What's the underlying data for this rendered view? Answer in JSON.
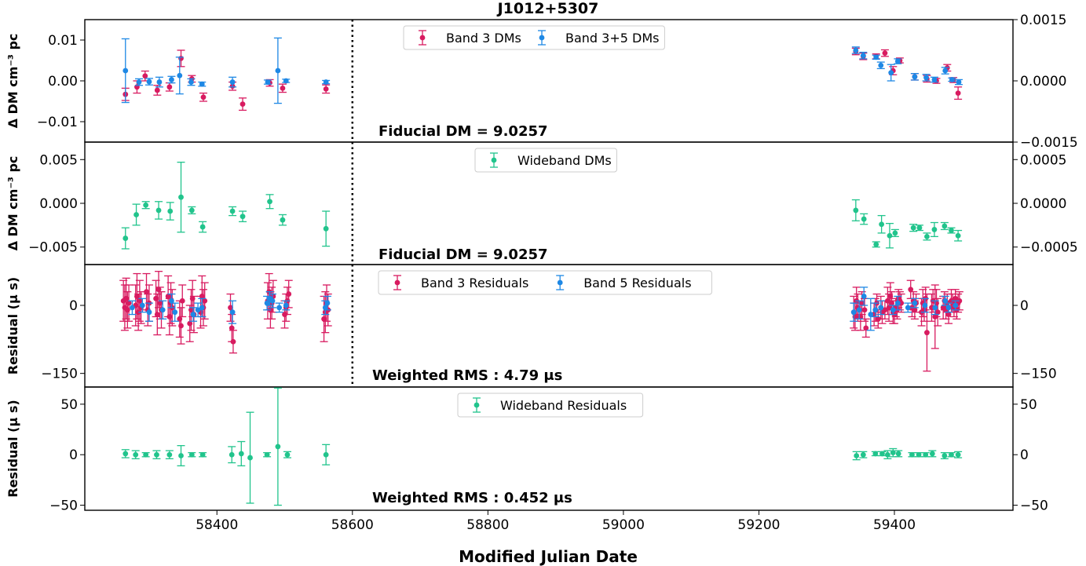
{
  "figure": {
    "title": "J1012+5307",
    "xlabel": "Modified Julian Date",
    "x_ticks": [
      "58400",
      "58600",
      "58800",
      "59000",
      "59200",
      "59400"
    ],
    "x_tick_values": [
      58400,
      58600,
      58800,
      59000,
      59200,
      59400
    ],
    "xlim": [
      58205,
      59575
    ]
  },
  "colors": {
    "band3": "#d81b60",
    "band5": "#1e88e5",
    "wideband": "#21c48c"
  },
  "chart_data": [
    {
      "type": "scatter",
      "panel": "dm-narrowband",
      "ylabel": "Δ DM  cm⁻³ pc",
      "ylim": [
        -0.015,
        0.015
      ],
      "yticks": [
        "0.01",
        "0.00",
        "−0.01"
      ],
      "ytick_values": [
        0.01,
        0.0,
        -0.01
      ],
      "right_yticks": [
        "0.0015",
        "0.0000",
        "−0.0015"
      ],
      "right_ytick_values": [
        0.0015,
        0.0,
        -0.0015
      ],
      "right_scale": 0.1,
      "annotation": "Fiducial DM = 9.0257",
      "vline_x": 58600,
      "legend": [
        "Band 3 DMs",
        "Band 3+5 DMs"
      ],
      "series": [
        {
          "name": "Band 3 DMs",
          "color_key": "band3",
          "x": [
            58265,
            58282,
            58294,
            58312,
            58330,
            58347,
            58363,
            58380,
            58423,
            58438,
            58478,
            58497,
            58561,
            59343,
            59354,
            59373,
            59386,
            59398,
            59408,
            59430,
            59448,
            59462,
            59478,
            59487,
            59494
          ],
          "y": [
            -0.0033,
            -0.0015,
            0.0012,
            -0.0023,
            -0.0015,
            0.0055,
            0.0005,
            -0.004,
            -0.0013,
            -0.0057,
            -0.0005,
            -0.0018,
            -0.002,
            0.0072,
            0.006,
            0.006,
            0.0068,
            0.0025,
            0.005,
            0.001,
            0.0005,
            0.0,
            0.0032,
            0.0002,
            -0.003
          ],
          "err": [
            0.0015,
            0.0015,
            0.0012,
            0.0012,
            0.001,
            0.002,
            0.0008,
            0.001,
            0.001,
            0.0015,
            0.0008,
            0.001,
            0.001,
            0.0008,
            0.0008,
            0.0006,
            0.0008,
            0.001,
            0.0006,
            0.0008,
            0.0008,
            0.0006,
            0.0008,
            0.0006,
            0.0015
          ]
        },
        {
          "name": "Band 3+5 DMs",
          "color_key": "band5",
          "x": [
            58265,
            58285,
            58300,
            58315,
            58333,
            58345,
            58362,
            58378,
            58423,
            58475,
            58490,
            58502,
            58561,
            59343,
            59354,
            59373,
            59380,
            59395,
            59405,
            59430,
            59447,
            59459,
            59475,
            59485,
            59495
          ],
          "y": [
            0.0025,
            -0.0003,
            -0.0002,
            -0.0003,
            0.0003,
            0.0013,
            -0.0003,
            -0.0008,
            -0.0003,
            -0.0003,
            0.0025,
            0.0,
            -0.0003,
            0.0075,
            0.0062,
            0.0058,
            0.0038,
            0.002,
            0.0048,
            0.001,
            0.0008,
            0.0003,
            0.0025,
            0.0003,
            -0.0003
          ],
          "err": [
            0.0078,
            0.0008,
            0.0008,
            0.0012,
            0.0008,
            0.0045,
            0.0008,
            0.0005,
            0.0012,
            0.0005,
            0.008,
            0.0004,
            0.0004,
            0.0008,
            0.0008,
            0.0005,
            0.0008,
            0.002,
            0.0006,
            0.0008,
            0.0008,
            0.0006,
            0.0008,
            0.0004,
            0.0006
          ]
        }
      ]
    },
    {
      "type": "scatter",
      "panel": "dm-wideband",
      "ylabel": "Δ DM  cm⁻³ pc",
      "ylim": [
        -0.007,
        0.007
      ],
      "yticks": [
        "0.005",
        "0.000",
        "−0.005"
      ],
      "ytick_values": [
        0.005,
        0.0,
        -0.005
      ],
      "right_yticks": [
        "0.0005",
        "0.0000",
        "−0.0005"
      ],
      "right_ytick_values": [
        0.0005,
        0.0,
        -0.0005
      ],
      "right_scale": 0.1,
      "annotation": "Fiducial DM = 9.0257",
      "vline_x": 58600,
      "legend": [
        "Wideband DMs"
      ],
      "series": [
        {
          "name": "Wideband DMs",
          "color_key": "wideband",
          "x": [
            58265,
            58281,
            58295,
            58314,
            58331,
            58347,
            58363,
            58379,
            58423,
            58438,
            58478,
            58497,
            58561,
            59343,
            59355,
            59373,
            59381,
            59393,
            59401,
            59428,
            59437,
            59448,
            59459,
            59474,
            59484,
            59494
          ],
          "y": [
            -0.004,
            -0.0013,
            -0.0002,
            -0.0008,
            -0.0009,
            0.0007,
            -0.0008,
            -0.0027,
            -0.0009,
            -0.0015,
            0.0002,
            -0.0019,
            -0.0029,
            -0.0008,
            -0.0018,
            -0.0047,
            -0.0024,
            -0.0037,
            -0.0034,
            -0.0028,
            -0.0028,
            -0.0038,
            -0.003,
            -0.0026,
            -0.0031,
            -0.0037
          ],
          "err": [
            0.0012,
            0.0012,
            0.0004,
            0.001,
            0.001,
            0.004,
            0.0004,
            0.0006,
            0.0005,
            0.0006,
            0.0008,
            0.0006,
            0.002,
            0.0012,
            0.0006,
            0.0003,
            0.001,
            0.0014,
            0.0004,
            0.0004,
            0.0003,
            0.0004,
            0.0008,
            0.0004,
            0.0003,
            0.0006
          ]
        }
      ]
    },
    {
      "type": "scatter",
      "panel": "residuals-narrowband",
      "ylabel": "Residual (μ s)",
      "ylim": [
        -180,
        90
      ],
      "yticks": [
        "0",
        "−150"
      ],
      "ytick_values": [
        0,
        -150
      ],
      "right_yticks": [
        "0",
        "−150"
      ],
      "right_ytick_values": [
        0,
        -150
      ],
      "right_scale": 1,
      "annotation": "Weighted RMS : 4.79 μs",
      "vline_x": 58600,
      "legend": [
        "Band 3 Residuals",
        "Band 5 Residuals"
      ],
      "series": [
        {
          "name": "Band 3 Residuals",
          "color_key": "band3",
          "x": [
            58262,
            58264,
            58266,
            58268,
            58270,
            58280,
            58282,
            58284,
            58286,
            58288,
            58296,
            58298,
            58300,
            58310,
            58312,
            58314,
            58316,
            58318,
            58328,
            58330,
            58332,
            58334,
            58345,
            58347,
            58349,
            58360,
            58362,
            58364,
            58366,
            58376,
            58378,
            58380,
            58382,
            58420,
            58422,
            58424,
            58475,
            58477,
            58479,
            58481,
            58483,
            58500,
            58502,
            58504,
            58506,
            58558,
            58560,
            58562,
            58564,
            59340,
            59342,
            59344,
            59346,
            59350,
            59352,
            59356,
            59358,
            59370,
            59372,
            59374,
            59376,
            59380,
            59382,
            59386,
            59390,
            59392,
            59394,
            59396,
            59398,
            59400,
            59402,
            59404,
            59406,
            59408,
            59410,
            59424,
            59426,
            59428,
            59430,
            59432,
            59440,
            59442,
            59444,
            59446,
            59448,
            59455,
            59457,
            59460,
            59462,
            59464,
            59472,
            59474,
            59476,
            59478,
            59480,
            59484,
            59486,
            59488,
            59490,
            59492,
            59494,
            59496
          ],
          "y": [
            10,
            -5,
            15,
            -10,
            5,
            0,
            20,
            -15,
            10,
            -5,
            30,
            -10,
            5,
            15,
            -20,
            35,
            5,
            -10,
            20,
            -25,
            5,
            -5,
            -30,
            -45,
            10,
            -40,
            -10,
            15,
            -20,
            -15,
            20,
            -5,
            10,
            -5,
            -50,
            -80,
            10,
            30,
            -10,
            5,
            20,
            -20,
            -5,
            10,
            25,
            -30,
            -15,
            5,
            -10,
            -15,
            -25,
            10,
            -5,
            -25,
            5,
            -10,
            -50,
            -20,
            -10,
            5,
            -30,
            -5,
            -15,
            -10,
            10,
            -5,
            20,
            5,
            -15,
            -20,
            -5,
            -10,
            15,
            10,
            5,
            35,
            -5,
            10,
            -10,
            5,
            -15,
            5,
            -10,
            15,
            -60,
            -5,
            10,
            -25,
            5,
            -15,
            -5,
            10,
            -10,
            5,
            -20,
            10,
            5,
            -5,
            15,
            -10,
            5,
            10
          ],
          "err": [
            45,
            50,
            45,
            40,
            40,
            45,
            50,
            40,
            45,
            35,
            40,
            35,
            40,
            40,
            45,
            40,
            35,
            40,
            45,
            40,
            45,
            40,
            40,
            40,
            35,
            40,
            45,
            40,
            40,
            35,
            45,
            40,
            40,
            30,
            30,
            25,
            40,
            40,
            40,
            35,
            35,
            30,
            30,
            30,
            30,
            50,
            45,
            40,
            35,
            35,
            30,
            30,
            30,
            30,
            25,
            25,
            20,
            25,
            25,
            20,
            20,
            25,
            25,
            20,
            30,
            30,
            30,
            25,
            25,
            20,
            20,
            20,
            20,
            20,
            20,
            20,
            20,
            20,
            20,
            20,
            30,
            30,
            25,
            25,
            85,
            30,
            25,
            70,
            30,
            30,
            25,
            20,
            20,
            20,
            20,
            25,
            20,
            20,
            20,
            20,
            20,
            20
          ]
        },
        {
          "name": "Band 5 Residuals",
          "color_key": "band5",
          "x": [
            58275,
            58290,
            58300,
            58320,
            58333,
            58338,
            58365,
            58372,
            58378,
            58423,
            58474,
            58478,
            58482,
            58492,
            58502,
            58560,
            58563,
            59340,
            59348,
            59355,
            59365,
            59372,
            59380,
            59398,
            59405,
            59420,
            59430,
            59445,
            59460,
            59475,
            59480,
            59490
          ],
          "y": [
            -5,
            0,
            -15,
            -10,
            10,
            -15,
            -20,
            -10,
            -5,
            -15,
            5,
            15,
            10,
            -5,
            0,
            -5,
            5,
            -15,
            -10,
            20,
            -20,
            -10,
            -5,
            -10,
            5,
            -5,
            5,
            0,
            -5,
            10,
            -5,
            0
          ],
          "err": [
            15,
            15,
            20,
            20,
            15,
            20,
            15,
            15,
            20,
            25,
            15,
            15,
            15,
            10,
            10,
            15,
            15,
            20,
            20,
            20,
            35,
            15,
            15,
            10,
            15,
            10,
            10,
            15,
            15,
            10,
            10,
            10
          ]
        }
      ]
    },
    {
      "type": "scatter",
      "panel": "residuals-wideband",
      "ylabel": "Residual (μ s)",
      "ylim": [
        -55,
        67
      ],
      "yticks": [
        "50",
        "0",
        "−50"
      ],
      "ytick_values": [
        50,
        0,
        -50
      ],
      "right_yticks": [
        "50",
        "0",
        "−50"
      ],
      "right_ytick_values": [
        50,
        0,
        -50
      ],
      "right_scale": 1,
      "annotation": "Weighted RMS : 0.452 μs",
      "legend": [
        "Wideband Residuals"
      ],
      "series": [
        {
          "name": "Wideband Residuals",
          "color_key": "wideband",
          "x": [
            58265,
            58280,
            58295,
            58311,
            58330,
            58347,
            58363,
            58379,
            58422,
            58436,
            58449,
            58474,
            58490,
            58504,
            58561,
            59344,
            59354,
            59372,
            59382,
            59390,
            59398,
            59406,
            59426,
            59436,
            59446,
            59456,
            59474,
            59484,
            59494
          ],
          "y": [
            1,
            0,
            0,
            0,
            0,
            -1,
            0,
            0,
            0,
            1,
            -3,
            0,
            8,
            0,
            0,
            -1,
            0,
            1,
            1,
            0,
            2,
            1,
            0,
            0,
            0,
            1,
            -1,
            0,
            0
          ],
          "err": [
            4,
            4,
            2,
            4,
            4,
            10,
            2,
            2,
            8,
            12,
            45,
            2,
            58,
            3,
            10,
            4,
            3,
            2,
            2,
            4,
            4,
            3,
            2,
            2,
            2,
            3,
            3,
            2,
            3
          ]
        }
      ]
    }
  ]
}
